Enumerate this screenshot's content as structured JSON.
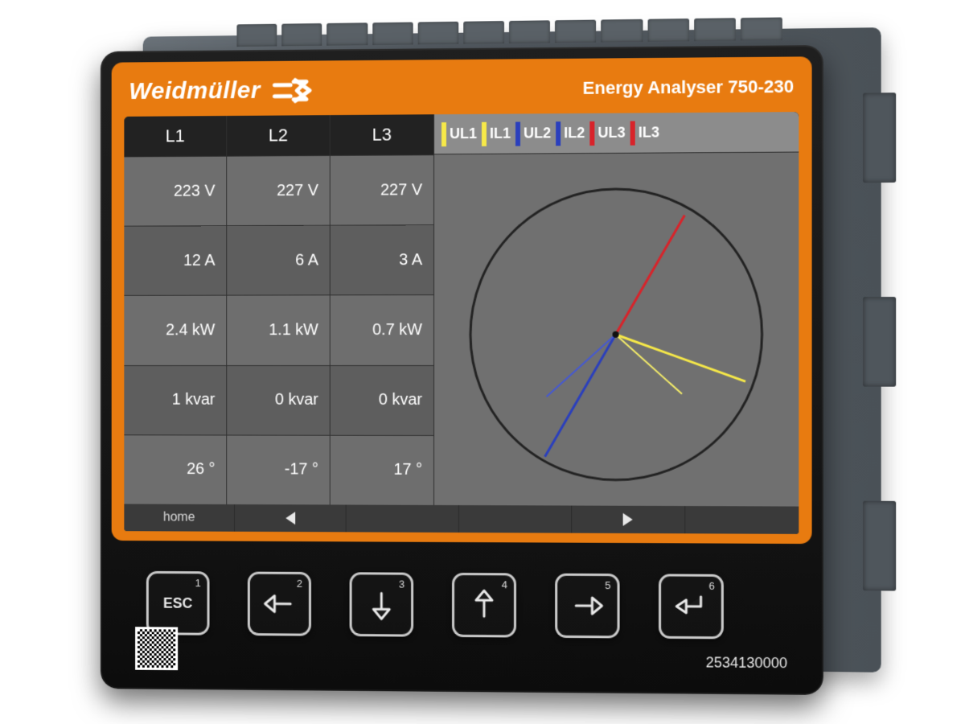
{
  "brand": "Weidmüller",
  "product_title": "Energy Analyser 750-230",
  "part_number": "2534130000",
  "colors": {
    "bezel_orange": "#e87b10",
    "screen_bg_dark": "#5a5a5a",
    "screen_bg_mid": "#707070",
    "table_header_bg": "#222222",
    "row_alt_a": "#6e6e6e",
    "row_alt_b": "#5e5e5e",
    "nav_bg": "#3a3a3a",
    "circle_stroke": "#222222",
    "UL1": "#f7e948",
    "IL1": "#f7e948",
    "UL2": "#2a3fbd",
    "IL2": "#2a3fbd",
    "UL3": "#d8232a",
    "IL3": "#d8232a"
  },
  "table": {
    "headers": [
      "L1",
      "L2",
      "L3"
    ],
    "rows": [
      {
        "bg": "a",
        "cells": [
          "223 V",
          "227 V",
          "227 V"
        ]
      },
      {
        "bg": "b",
        "cells": [
          "12 A",
          "6 A",
          "3 A"
        ]
      },
      {
        "bg": "a",
        "cells": [
          "2.4 kW",
          "1.1 kW",
          "0.7 kW"
        ]
      },
      {
        "bg": "b",
        "cells": [
          "1 kvar",
          "0 kvar",
          "0 kvar"
        ]
      },
      {
        "bg": "a",
        "cells": [
          "26 °",
          "-17 °",
          "17 °"
        ]
      }
    ]
  },
  "legend": [
    {
      "label": "UL1",
      "color": "#f7e948"
    },
    {
      "label": "IL1",
      "color": "#f7e948"
    },
    {
      "label": "UL2",
      "color": "#2a3fbd"
    },
    {
      "label": "IL2",
      "color": "#2a3fbd"
    },
    {
      "label": "UL3",
      "color": "#d8232a"
    },
    {
      "label": "IL3",
      "color": "#d8232a"
    }
  ],
  "phasor": {
    "circle_r": 180,
    "vectors": [
      {
        "name": "UL3",
        "angle_deg": 60,
        "len": 170,
        "color": "#d8232a",
        "width": 3
      },
      {
        "name": "IL1",
        "angle_deg": -20,
        "len": 170,
        "color": "#f7e948",
        "width": 3
      },
      {
        "name": "UL1",
        "angle_deg": -42,
        "len": 110,
        "color": "#f5ed6a",
        "width": 2
      },
      {
        "name": "UL2",
        "angle_deg": 240,
        "len": 175,
        "color": "#2a3fbd",
        "width": 3
      },
      {
        "name": "IL2",
        "angle_deg": 222,
        "len": 115,
        "color": "#4458d4",
        "width": 2
      }
    ]
  },
  "nav": {
    "home_label": "home",
    "items": [
      "home",
      "left",
      "",
      "",
      "right",
      ""
    ]
  },
  "buttons": [
    {
      "num": "1",
      "type": "text",
      "label": "ESC",
      "name": "esc-button"
    },
    {
      "num": "2",
      "type": "arrow",
      "dir": "left",
      "name": "left-button"
    },
    {
      "num": "3",
      "type": "arrow",
      "dir": "down",
      "name": "down-button"
    },
    {
      "num": "4",
      "type": "arrow",
      "dir": "up",
      "name": "up-button"
    },
    {
      "num": "5",
      "type": "arrow",
      "dir": "right",
      "name": "right-button"
    },
    {
      "num": "6",
      "type": "enter",
      "name": "enter-button"
    }
  ]
}
